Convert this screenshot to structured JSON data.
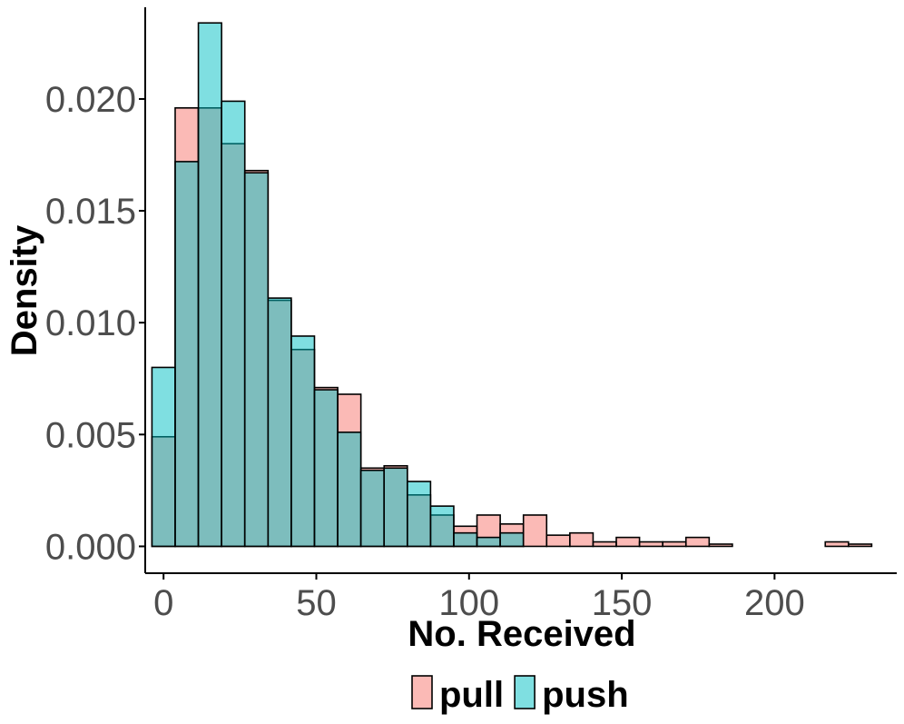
{
  "chart_data": {
    "type": "bar",
    "subtype": "overlapping-histogram",
    "xlabel": "No. Received",
    "ylabel": "Density",
    "xlim": [
      -6,
      240
    ],
    "ylim": [
      -0.0012,
      0.0241
    ],
    "x_ticks": [
      0,
      50,
      100,
      150,
      200
    ],
    "y_ticks": [
      0.0,
      0.005,
      0.01,
      0.015,
      0.02
    ],
    "x_tick_labels": [
      "0",
      "50",
      "100",
      "150",
      "200"
    ],
    "y_tick_labels": [
      "0.000",
      "0.005",
      "0.010",
      "0.015",
      "0.020"
    ],
    "bin_width": 7.6,
    "bin_starts": [
      -3.8,
      3.8,
      11.4,
      19.0,
      26.6,
      34.2,
      41.8,
      49.4,
      57.0,
      64.6,
      72.2,
      79.8,
      87.4,
      95.0,
      102.6,
      110.2,
      117.8,
      125.4,
      133.0,
      140.6,
      148.2,
      155.8,
      163.4,
      171.0,
      178.6,
      186.2,
      193.8,
      201.4,
      209.0,
      216.6,
      224.2
    ],
    "grid": false,
    "legend_position": "bottom",
    "bar_outline": "#000000",
    "series": [
      {
        "name": "pull",
        "color": "#f8766d",
        "opacity": 0.5,
        "values": [
          0.0049,
          0.0196,
          0.0196,
          0.018,
          0.0168,
          0.011,
          0.0088,
          0.0071,
          0.0068,
          0.0035,
          0.0036,
          0.0023,
          0.0014,
          0.0009,
          0.0014,
          0.001,
          0.0014,
          0.0005,
          0.0006,
          0.0002,
          0.0004,
          0.0002,
          0.0002,
          0.0004,
          0.0001,
          0.0,
          0.0,
          0.0,
          0.0,
          0.0002,
          0.0001
        ]
      },
      {
        "name": "push",
        "color": "#00bfc4",
        "opacity": 0.5,
        "values": [
          0.008,
          0.0172,
          0.0234,
          0.0199,
          0.0167,
          0.0111,
          0.0094,
          0.007,
          0.0051,
          0.0034,
          0.0035,
          0.0029,
          0.0018,
          0.0006,
          0.0004,
          0.0006,
          0.0,
          0.0,
          0.0,
          0.0,
          0.0,
          0.0,
          0.0,
          0.0,
          0.0,
          0.0,
          0.0,
          0.0,
          0.0,
          0.0,
          0.0
        ]
      }
    ]
  }
}
